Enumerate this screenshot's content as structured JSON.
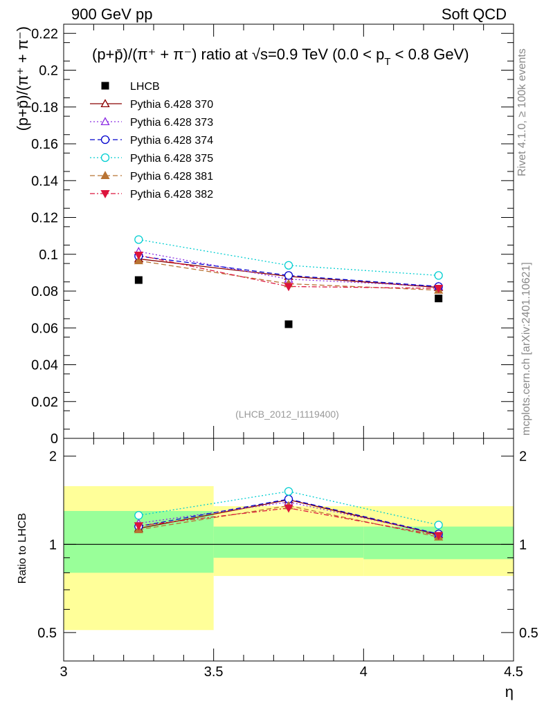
{
  "header": {
    "left": "900 GeV pp",
    "right": "Soft QCD"
  },
  "side": {
    "rivet": "Rivet 4.1.0, ≥ 100k events",
    "mcplots": "mcplots.cern.ch [arXiv:2401.10621]"
  },
  "chart_data": {
    "type": "scatter",
    "title_parts": {
      "prefix": "(p+p̄)/(π⁺ + π⁻) ratio at √s=0.9 TeV (0.0 < p",
      "sub": "T",
      "suffix": " < 0.8 GeV)"
    },
    "ylabel_main": "(p+p̄)/(π⁺ + π⁻)",
    "ylabel_ratio": "Ratio to LHCB",
    "xlabel": "η",
    "analysis_id": "(LHCB_2012_I1119400)",
    "x": [
      3.25,
      3.75,
      4.25
    ],
    "x_bins": [
      [
        3.0,
        3.5
      ],
      [
        3.5,
        4.0
      ],
      [
        4.0,
        4.5
      ]
    ],
    "xlim": [
      3.0,
      4.5
    ],
    "ylim_main": [
      0,
      0.225
    ],
    "ylim_ratio": [
      0.4,
      2.3
    ],
    "x_ticks": [
      {
        "value": 3.0,
        "label": "3"
      },
      {
        "value": 3.5,
        "label": "3.5"
      },
      {
        "value": 4.0,
        "label": "4"
      },
      {
        "value": 4.5,
        "label": "4.5"
      }
    ],
    "y_ticks_main": [
      {
        "value": 0,
        "label": "0"
      },
      {
        "value": 0.02,
        "label": "0.02"
      },
      {
        "value": 0.04,
        "label": "0.04"
      },
      {
        "value": 0.06,
        "label": "0.06"
      },
      {
        "value": 0.08,
        "label": "0.08"
      },
      {
        "value": 0.1,
        "label": "0.1"
      },
      {
        "value": 0.12,
        "label": "0.12"
      },
      {
        "value": 0.14,
        "label": "0.14"
      },
      {
        "value": 0.16,
        "label": "0.16"
      },
      {
        "value": 0.18,
        "label": "0.18"
      },
      {
        "value": 0.2,
        "label": "0.2"
      },
      {
        "value": 0.22,
        "label": "0.22"
      }
    ],
    "y_ticks_ratio": [
      {
        "value": 0.5,
        "label": "0.5"
      },
      {
        "value": 1,
        "label": "1"
      },
      {
        "value": 2,
        "label": "2"
      }
    ],
    "data": {
      "name": "LHCB",
      "values": [
        0.086,
        0.062,
        0.076
      ],
      "color": "#000000",
      "band_stat": [
        [
          0.8,
          1.3
        ],
        [
          0.9,
          1.15
        ],
        [
          0.89,
          1.15
        ]
      ],
      "band_total": [
        [
          0.51,
          1.58
        ],
        [
          0.78,
          1.35
        ],
        [
          0.78,
          1.35
        ]
      ]
    },
    "series": [
      {
        "name": "Pythia 6.428 370",
        "values": [
          0.0975,
          0.088,
          0.082
        ],
        "color": "#8b0000",
        "marker": "triangle-open",
        "dash": ""
      },
      {
        "name": "Pythia 6.428 373",
        "values": [
          0.1015,
          0.0865,
          0.0825
        ],
        "color": "#8a2be2",
        "marker": "triangle-open",
        "dash": "2,3"
      },
      {
        "name": "Pythia 6.428 374",
        "values": [
          0.099,
          0.0885,
          0.0825
        ],
        "color": "#0000cd",
        "marker": "circle-open",
        "dash": "7,4"
      },
      {
        "name": "Pythia 6.428 375",
        "values": [
          0.108,
          0.094,
          0.0885
        ],
        "color": "#00ced1",
        "marker": "circle-open",
        "dash": "2,3"
      },
      {
        "name": "Pythia 6.428 381",
        "values": [
          0.0965,
          0.084,
          0.0805
        ],
        "color": "#b87333",
        "marker": "triangle-filled",
        "dash": "7,4"
      },
      {
        "name": "Pythia 6.428 382",
        "values": [
          0.0995,
          0.0825,
          0.0815
        ],
        "color": "#dc143c",
        "marker": "triangle-down-filled",
        "dash": "7,3,2,3"
      }
    ]
  }
}
